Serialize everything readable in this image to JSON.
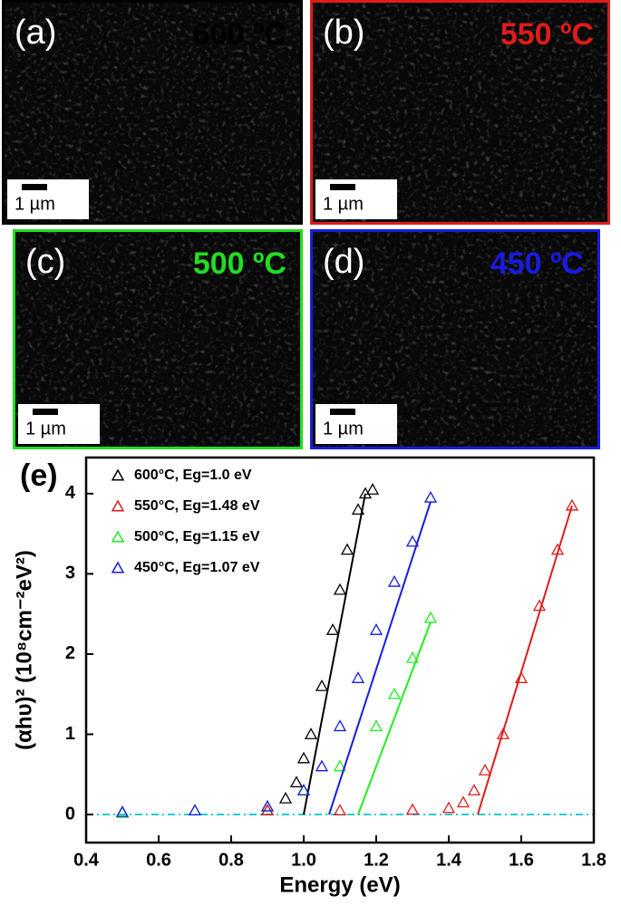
{
  "panels": [
    {
      "label": "(a)",
      "temperature": "600 ºC",
      "color": "#000000",
      "scale_bar": "1 µm"
    },
    {
      "label": "(b)",
      "temperature": "550 ºC",
      "color": "#e01b1b",
      "scale_bar": "1 µm"
    },
    {
      "label": "(c)",
      "temperature": "500 ºC",
      "color": "#22dd22",
      "scale_bar": "1 µm"
    },
    {
      "label": "(d)",
      "temperature": "450 ºC",
      "color": "#1a1ae0",
      "scale_bar": "1 µm"
    }
  ],
  "chart_data": {
    "type": "scatter",
    "panel_label": "(e)",
    "x_label": "Energy (eV)",
    "y_label": "(αhυ)² (10⁸cm⁻²eV²)",
    "xlim": [
      0.4,
      1.8
    ],
    "ylim": [
      -0.35,
      4.45
    ],
    "xticks": [
      0.4,
      0.6,
      0.8,
      {
        "value": 1,
        "label": "1.0"
      },
      1.2,
      1.4,
      1.6,
      1.8
    ],
    "yticks": [
      0,
      1,
      2,
      3,
      4
    ],
    "zero_line": 0,
    "zero_line_color": "#22cccc",
    "series": [
      {
        "name": "600°C, Eg=1.0 eV",
        "color": "#000000",
        "x": [
          0.9,
          0.95,
          0.98,
          1.0,
          1.02,
          1.05,
          1.08,
          1.1,
          1.12,
          1.15,
          1.17,
          1.19
        ],
        "values": [
          0.05,
          0.2,
          0.4,
          0.7,
          1.0,
          1.6,
          2.3,
          2.8,
          3.3,
          3.8,
          4.0,
          4.05
        ],
        "fit_x": [
          1.0,
          1.17
        ],
        "fit_values": [
          0,
          4.0
        ]
      },
      {
        "name": "550°C, Eg=1.48 eV",
        "color": "#e01b1b",
        "x": [
          0.9,
          1.1,
          1.3,
          1.4,
          1.44,
          1.47,
          1.5,
          1.55,
          1.6,
          1.65,
          1.7,
          1.74
        ],
        "values": [
          0.05,
          0.05,
          0.06,
          0.08,
          0.15,
          0.3,
          0.55,
          1.0,
          1.7,
          2.6,
          3.3,
          3.85
        ],
        "fit_x": [
          1.48,
          1.74
        ],
        "fit_values": [
          0,
          3.85
        ]
      },
      {
        "name": "500°C, Eg=1.15 eV",
        "color": "#22ee22",
        "x": [
          0.5,
          0.7,
          0.9,
          1.0,
          1.1,
          1.2,
          1.25,
          1.3,
          1.35
        ],
        "values": [
          0.02,
          0.05,
          0.1,
          0.3,
          0.6,
          1.1,
          1.5,
          1.95,
          2.45
        ],
        "fit_x": [
          1.15,
          1.35
        ],
        "fit_values": [
          0,
          2.4
        ]
      },
      {
        "name": "450°C, Eg=1.07 eV",
        "color": "#1a1ae0",
        "x": [
          0.5,
          0.7,
          0.9,
          1.0,
          1.05,
          1.1,
          1.15,
          1.2,
          1.25,
          1.3,
          1.35
        ],
        "values": [
          0.03,
          0.05,
          0.1,
          0.3,
          0.6,
          1.1,
          1.7,
          2.3,
          2.9,
          3.4,
          3.95
        ],
        "fit_x": [
          1.07,
          1.35
        ],
        "fit_values": [
          0,
          3.9
        ]
      }
    ]
  }
}
